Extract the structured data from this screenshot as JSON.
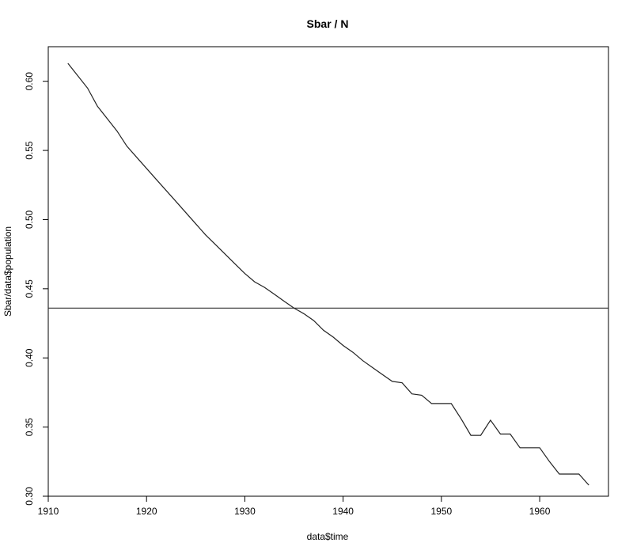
{
  "chart_data": {
    "type": "line",
    "title": "Sbar / N",
    "xlabel": "data$time",
    "ylabel": "Sbar/data$population",
    "xlim": [
      1910,
      1967
    ],
    "ylim": [
      0.3,
      0.625
    ],
    "x_ticks": [
      1910,
      1920,
      1930,
      1940,
      1950,
      1960
    ],
    "y_ticks": [
      0.3,
      0.35,
      0.4,
      0.45,
      0.5,
      0.55,
      0.6
    ],
    "y_tick_labels": [
      "0.30",
      "0.35",
      "0.40",
      "0.45",
      "0.50",
      "0.55",
      "0.60"
    ],
    "grid": false,
    "series": [
      {
        "x": [
          1912,
          1913,
          1914,
          1915,
          1916,
          1917,
          1918,
          1919,
          1920,
          1921,
          1922,
          1923,
          1924,
          1925,
          1926,
          1927,
          1928,
          1929,
          1930,
          1931,
          1932,
          1933,
          1934,
          1935,
          1936,
          1937,
          1938,
          1939,
          1940,
          1941,
          1942,
          1943,
          1944,
          1945,
          1946,
          1947,
          1948,
          1949,
          1950,
          1951,
          1952,
          1953,
          1954,
          1955,
          1956,
          1957,
          1958,
          1959,
          1960,
          1961,
          1962,
          1963,
          1964,
          1965
        ],
        "y": [
          0.613,
          0.604,
          0.595,
          0.582,
          0.573,
          0.564,
          0.553,
          0.545,
          0.537,
          0.529,
          0.521,
          0.513,
          0.505,
          0.497,
          0.489,
          0.482,
          0.475,
          0.468,
          0.461,
          0.455,
          0.451,
          0.446,
          0.441,
          0.436,
          0.432,
          0.427,
          0.42,
          0.415,
          0.409,
          0.404,
          0.398,
          0.393,
          0.388,
          0.383,
          0.382,
          0.374,
          0.373,
          0.367,
          0.367,
          0.367,
          0.356,
          0.344,
          0.344,
          0.355,
          0.345,
          0.345,
          0.335,
          0.335,
          0.335,
          0.325,
          0.316,
          0.316,
          0.316,
          0.308
        ]
      }
    ],
    "hline": 0.436
  }
}
